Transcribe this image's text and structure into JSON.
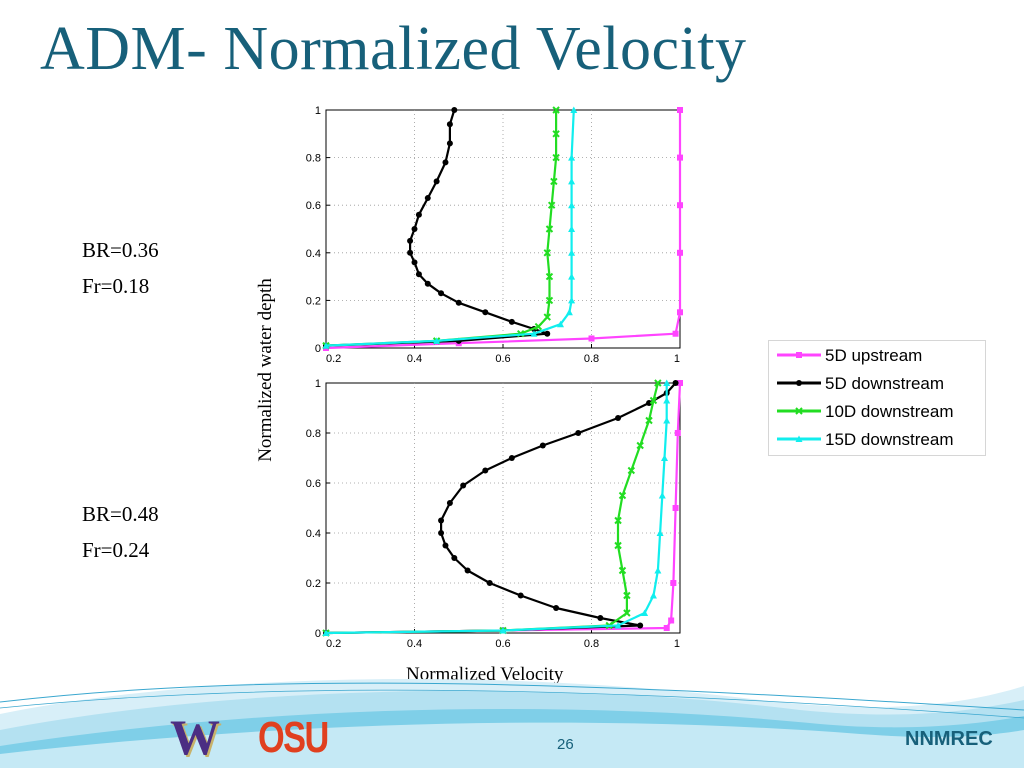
{
  "slide": {
    "title": "ADM- Normalized Velocity",
    "page_number": "26",
    "organization": "NNMREC",
    "logos": {
      "left": "W",
      "right": "OSU"
    }
  },
  "cases": [
    {
      "br": "BR=0.36",
      "fr": "Fr=0.18"
    },
    {
      "br": "BR=0.48",
      "fr": "Fr=0.24"
    }
  ],
  "axis_labels": {
    "x": "Normalized Velocity",
    "y": "Normalized water depth"
  },
  "legend": [
    {
      "name": "5D upstream",
      "color": "#ff44ff",
      "marker": "square"
    },
    {
      "name": "5D downstream",
      "color": "#000000",
      "marker": "circle"
    },
    {
      "name": "10D downstream",
      "color": "#22dd22",
      "marker": "x"
    },
    {
      "name": "15D downstream",
      "color": "#11eeee",
      "marker": "triangle"
    }
  ],
  "chart_data": [
    {
      "type": "line",
      "xlim": [
        0.2,
        1
      ],
      "ylim": [
        0,
        1
      ],
      "xticks": [
        "0.2",
        "0.4",
        "0.6",
        "0.8",
        "1"
      ],
      "yticks": [
        "0",
        "0.2",
        "0.4",
        "0.6",
        "0.8",
        "1"
      ],
      "grid": true,
      "series": [
        {
          "name": "5D upstream",
          "x": [
            0.2,
            0.5,
            0.8,
            0.99,
            1.0,
            1.0,
            1.0,
            1.0,
            1.0
          ],
          "y": [
            0.0,
            0.02,
            0.04,
            0.06,
            0.15,
            0.4,
            0.6,
            0.8,
            1.0
          ]
        },
        {
          "name": "5D downstream",
          "x": [
            0.2,
            0.5,
            0.7,
            0.67,
            0.62,
            0.56,
            0.5,
            0.46,
            0.43,
            0.41,
            0.4,
            0.39,
            0.39,
            0.4,
            0.41,
            0.43,
            0.45,
            0.47,
            0.48,
            0.48,
            0.49
          ],
          "y": [
            0.01,
            0.03,
            0.06,
            0.08,
            0.11,
            0.15,
            0.19,
            0.23,
            0.27,
            0.31,
            0.36,
            0.4,
            0.45,
            0.5,
            0.56,
            0.63,
            0.7,
            0.78,
            0.86,
            0.94,
            1.0
          ]
        },
        {
          "name": "10D downstream",
          "x": [
            0.2,
            0.45,
            0.64,
            0.68,
            0.7,
            0.705,
            0.705,
            0.7,
            0.705,
            0.71,
            0.715,
            0.72,
            0.72,
            0.72
          ],
          "y": [
            0.01,
            0.03,
            0.06,
            0.09,
            0.13,
            0.2,
            0.3,
            0.4,
            0.5,
            0.6,
            0.7,
            0.8,
            0.9,
            1.0
          ]
        },
        {
          "name": "15D downstream",
          "x": [
            0.2,
            0.45,
            0.67,
            0.73,
            0.75,
            0.755,
            0.755,
            0.755,
            0.755,
            0.755,
            0.755,
            0.755,
            0.76
          ],
          "y": [
            0.01,
            0.03,
            0.06,
            0.1,
            0.15,
            0.2,
            0.3,
            0.4,
            0.5,
            0.6,
            0.7,
            0.8,
            1.0
          ]
        }
      ]
    },
    {
      "type": "line",
      "xlim": [
        0.2,
        1
      ],
      "ylim": [
        0,
        1
      ],
      "xticks": [
        "0.2",
        "0.4",
        "0.6",
        "0.8",
        "1"
      ],
      "yticks": [
        "0",
        "0.2",
        "0.4",
        "0.6",
        "0.8",
        "1"
      ],
      "grid": true,
      "series": [
        {
          "name": "5D upstream",
          "x": [
            0.2,
            0.6,
            0.97,
            0.98,
            0.985,
            0.99,
            0.995,
            1.0
          ],
          "y": [
            0.0,
            0.01,
            0.02,
            0.05,
            0.2,
            0.5,
            0.8,
            1.0
          ]
        },
        {
          "name": "5D downstream",
          "x": [
            0.2,
            0.6,
            0.91,
            0.82,
            0.72,
            0.64,
            0.57,
            0.52,
            0.49,
            0.47,
            0.46,
            0.46,
            0.48,
            0.51,
            0.56,
            0.62,
            0.69,
            0.77,
            0.86,
            0.93,
            0.97,
            0.99
          ],
          "y": [
            0.0,
            0.01,
            0.03,
            0.06,
            0.1,
            0.15,
            0.2,
            0.25,
            0.3,
            0.35,
            0.4,
            0.45,
            0.52,
            0.59,
            0.65,
            0.7,
            0.75,
            0.8,
            0.86,
            0.92,
            0.96,
            1.0
          ]
        },
        {
          "name": "10D downstream",
          "x": [
            0.2,
            0.6,
            0.84,
            0.88,
            0.88,
            0.87,
            0.86,
            0.86,
            0.87,
            0.89,
            0.91,
            0.93,
            0.94,
            0.95
          ],
          "y": [
            0.0,
            0.01,
            0.03,
            0.08,
            0.15,
            0.25,
            0.35,
            0.45,
            0.55,
            0.65,
            0.75,
            0.85,
            0.93,
            1.0
          ]
        },
        {
          "name": "15D downstream",
          "x": [
            0.2,
            0.6,
            0.86,
            0.92,
            0.94,
            0.95,
            0.955,
            0.96,
            0.965,
            0.97,
            0.97,
            0.97
          ],
          "y": [
            0.0,
            0.01,
            0.03,
            0.08,
            0.15,
            0.25,
            0.4,
            0.55,
            0.7,
            0.85,
            0.93,
            1.0
          ]
        }
      ]
    }
  ]
}
